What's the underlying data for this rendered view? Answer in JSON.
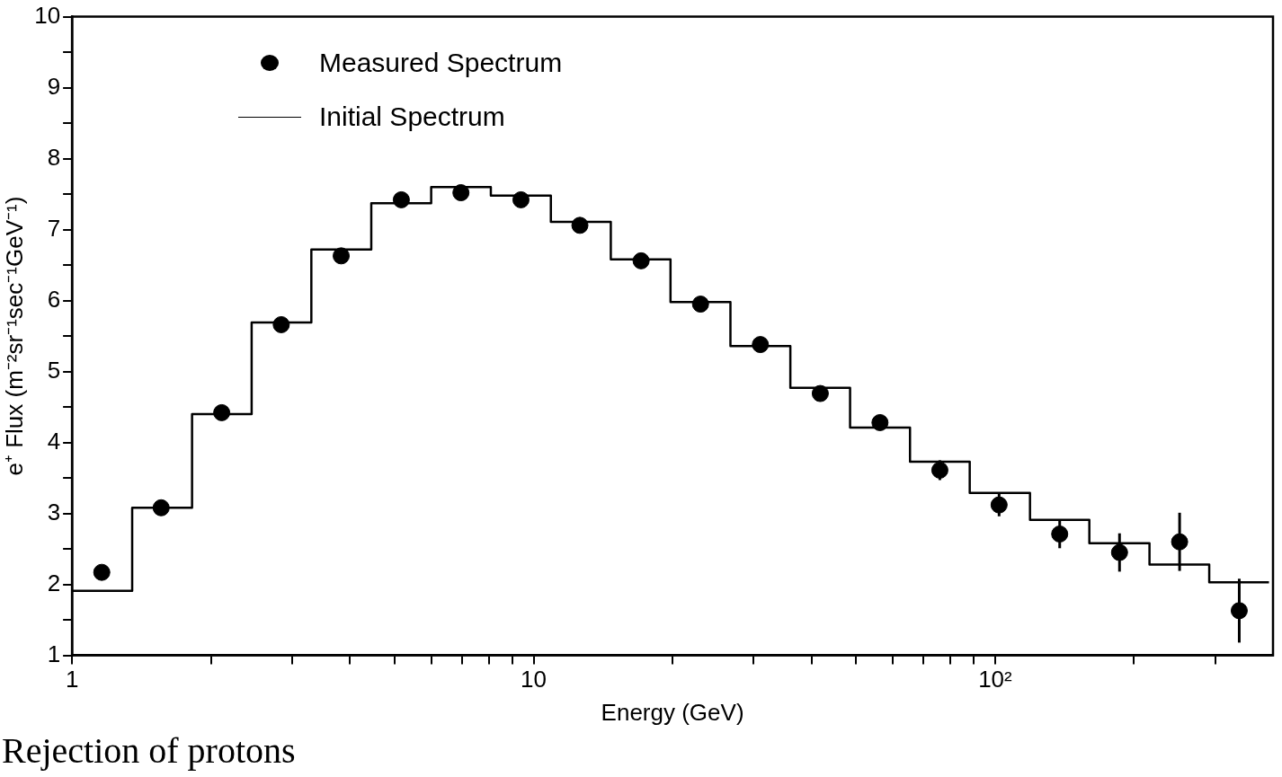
{
  "chart_data": {
    "type": "scatter",
    "xlabel": "Energy (GeV)",
    "ylabel": "e⁺ Flux (m⁻²sr⁻¹sec⁻¹GeV⁻¹)",
    "log": "x",
    "marker": "circle",
    "legend": "top left",
    "xlim": [
      1,
      400
    ],
    "ylim": [
      1,
      10
    ],
    "xticks": [
      1,
      {
        "value": 2,
        "label": null
      },
      {
        "value": 3,
        "label": null
      },
      {
        "value": 4,
        "label": null
      },
      {
        "value": 5,
        "label": null
      },
      {
        "value": 6,
        "label": null
      },
      {
        "value": 7,
        "label": null
      },
      {
        "value": 8,
        "label": null
      },
      {
        "value": 9,
        "label": null
      },
      10,
      {
        "value": 20,
        "label": null
      },
      {
        "value": 30,
        "label": null
      },
      {
        "value": 40,
        "label": null
      },
      {
        "value": 50,
        "label": null
      },
      {
        "value": 60,
        "label": null
      },
      {
        "value": 70,
        "label": null
      },
      {
        "value": 80,
        "label": null
      },
      {
        "value": 90,
        "label": null
      },
      {
        "value": 100,
        "label": "10²"
      },
      {
        "value": 200,
        "label": null
      },
      {
        "value": 300,
        "label": null
      }
    ],
    "yticks": [
      1,
      {
        "value": 1.5,
        "label": null
      },
      2,
      {
        "value": 2.5,
        "label": null
      },
      3,
      {
        "value": 3.5,
        "label": null
      },
      4,
      {
        "value": 4.5,
        "label": null
      },
      5,
      {
        "value": 5.5,
        "label": null
      },
      6,
      {
        "value": 6.5,
        "label": null
      },
      7,
      {
        "value": 7.5,
        "label": null
      },
      8,
      {
        "value": 8.5,
        "label": null
      },
      9,
      {
        "value": 9.5,
        "label": null
      },
      10
    ],
    "annotations": [
      "Rejection of protons"
    ],
    "series": [
      {
        "name": "Measured Spectrum",
        "color": "#000000",
        "x": [
          1.16,
          1.56,
          2.11,
          2.84,
          3.83,
          5.17,
          6.96,
          9.39,
          12.6,
          17.1,
          23.0,
          31.0,
          41.8,
          56.3,
          75.9,
          102,
          138,
          186,
          251,
          338
        ],
        "values": [
          2.17,
          3.08,
          4.42,
          5.66,
          6.63,
          7.42,
          7.52,
          7.42,
          7.06,
          6.56,
          5.95,
          5.38,
          4.69,
          4.28,
          3.61,
          3.12,
          2.71,
          2.45,
          2.6,
          1.63
        ],
        "errors": [
          null,
          null,
          null,
          null,
          null,
          null,
          null,
          null,
          null,
          null,
          null,
          null,
          null,
          0.1,
          0.14,
          0.16,
          0.2,
          0.27,
          0.41,
          0.45
        ]
      },
      {
        "name": "Initial Spectrum",
        "type": "histogram",
        "color": "#000000",
        "bins": [
          1,
          1.35,
          1.82,
          2.45,
          3.3,
          4.45,
          6,
          8.08,
          10.9,
          14.7,
          19.8,
          26.7,
          36,
          48.5,
          65.4,
          88.1,
          119,
          160,
          216,
          291,
          392
        ],
        "values": [
          1.91,
          3.08,
          4.4,
          5.69,
          6.72,
          7.37,
          7.6,
          7.48,
          7.11,
          6.58,
          5.98,
          5.36,
          4.77,
          4.21,
          3.73,
          3.29,
          2.91,
          2.58,
          2.28,
          2.03
        ]
      }
    ]
  }
}
